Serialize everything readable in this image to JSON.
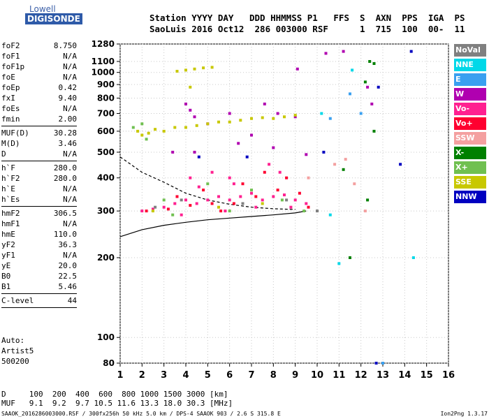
{
  "logo": {
    "top": "Lowell",
    "bottom": "DIGISONDE"
  },
  "header": {
    "line1": "Station YYYY DAY   DDD HHMMSS P1   FFS  S  AXN  PPS  IGA  PS",
    "line2": "SaoLuis 2016 Oct12  286 003000 RSF      1  715  100  00-  11"
  },
  "params": [
    [
      {
        "label": "foF2",
        "value": "8.750"
      },
      {
        "label": "foF1",
        "value": "N/A"
      },
      {
        "label": "foF1p",
        "value": "N/A"
      },
      {
        "label": "foE",
        "value": "N/A"
      },
      {
        "label": "foEp",
        "value": "0.42"
      },
      {
        "label": "fxI",
        "value": "9.40"
      },
      {
        "label": "foEs",
        "value": "N/A"
      },
      {
        "label": "fmin",
        "value": "2.00"
      }
    ],
    [
      {
        "label": "MUF(D)",
        "value": "30.28"
      },
      {
        "label": "M(D)",
        "value": "3.46"
      },
      {
        "label": "D",
        "value": "N/A"
      }
    ],
    [
      {
        "label": "h`F",
        "value": "280.0"
      },
      {
        "label": "h`F2",
        "value": "280.0"
      },
      {
        "label": "h`E",
        "value": "N/A"
      },
      {
        "label": "h`Es",
        "value": "N/A"
      }
    ],
    [
      {
        "label": "hmF2",
        "value": "306.5"
      },
      {
        "label": "hmF1",
        "value": "N/A"
      },
      {
        "label": "hmE",
        "value": "110.0"
      },
      {
        "label": "yF2",
        "value": "36.3"
      },
      {
        "label": "yF1",
        "value": "N/A"
      },
      {
        "label": "yE",
        "value": "20.0"
      },
      {
        "label": "B0",
        "value": "22.5"
      },
      {
        "label": "B1",
        "value": "5.46"
      }
    ],
    [
      {
        "label": "C-level",
        "value": "44"
      }
    ]
  ],
  "auto": {
    "line1": "Auto:",
    "line2": "Artist5",
    "line3": "500200"
  },
  "dmuf": {
    "d_line": "D     100  200  400  600  800 1000 1500 3000 [km]",
    "muf_line": "MUF   9.1  9.2  9.7 10.5 11.6 13.3 18.0 30.3 [MHz]"
  },
  "footer": {
    "left": "SAAOK_2016286003000.RSF / 300fx256h 50 kHz 5.0 km / DPS-4 SAAOK 903 / 2.6 S 315.8 E",
    "right": "Ion2Png 1.3.17"
  },
  "legend": [
    {
      "label": "NoVal",
      "color": "#808080"
    },
    {
      "label": "NNE",
      "color": "#00d8e8"
    },
    {
      "label": "E",
      "color": "#3aa0f0"
    },
    {
      "label": "W",
      "color": "#b000b0"
    },
    {
      "label": "Vo-",
      "color": "#ff2090"
    },
    {
      "label": "Vo+",
      "color": "#ff0030"
    },
    {
      "label": "SSW",
      "color": "#f4a0a0"
    },
    {
      "label": "X-",
      "color": "#008000"
    },
    {
      "label": "X+",
      "color": "#70c050"
    },
    {
      "label": "SSE",
      "color": "#c8c800"
    },
    {
      "label": "NNW",
      "color": "#0000c0"
    }
  ],
  "chart_data": {
    "type": "scatter",
    "xlabel": "",
    "ylabel": "",
    "xlim": [
      1,
      16
    ],
    "ylim": [
      80,
      1280
    ],
    "y_scale": "log",
    "x_ticks": [
      "1",
      "2",
      "3",
      "4",
      "5",
      "6",
      "7",
      "8",
      "9",
      "10",
      "11",
      "12",
      "13",
      "14",
      "15",
      "16"
    ],
    "y_ticks": [
      "80",
      "100",
      "200",
      "300",
      "400",
      "500",
      "600",
      "700",
      "800",
      "900",
      "1000",
      "1100",
      "1280"
    ],
    "grid": "dotted",
    "legend_position": "right",
    "series": [
      {
        "name": "Vo-",
        "points": [
          [
            2.0,
            300
          ],
          [
            2.5,
            305
          ],
          [
            3.0,
            310
          ],
          [
            3.5,
            320
          ],
          [
            4.0,
            330
          ],
          [
            4.5,
            320
          ],
          [
            5.0,
            330
          ],
          [
            5.5,
            340
          ],
          [
            6.0,
            330
          ],
          [
            6.5,
            340
          ],
          [
            7.0,
            350
          ],
          [
            7.5,
            330
          ],
          [
            8.0,
            340
          ],
          [
            8.5,
            345
          ],
          [
            9.0,
            330
          ],
          [
            9.5,
            320
          ],
          [
            4.2,
            400
          ],
          [
            5.2,
            420
          ],
          [
            6.2,
            380
          ],
          [
            7.8,
            450
          ],
          [
            8.3,
            420
          ],
          [
            3.8,
            290
          ],
          [
            5.8,
            300
          ],
          [
            7.2,
            310
          ],
          [
            8.8,
            310
          ],
          [
            6.0,
            400
          ],
          [
            4.6,
            370
          ]
        ]
      },
      {
        "name": "Vo+",
        "points": [
          [
            2.2,
            300
          ],
          [
            3.2,
            305
          ],
          [
            4.2,
            315
          ],
          [
            5.2,
            320
          ],
          [
            6.2,
            320
          ],
          [
            7.2,
            340
          ],
          [
            8.2,
            360
          ],
          [
            9.2,
            350
          ],
          [
            3.6,
            340
          ],
          [
            4.8,
            360
          ],
          [
            6.6,
            380
          ],
          [
            8.6,
            400
          ],
          [
            7.6,
            420
          ],
          [
            5.6,
            300
          ],
          [
            9.6,
            310
          ]
        ]
      },
      {
        "name": "W",
        "points": [
          [
            4.0,
            760
          ],
          [
            4.2,
            720
          ],
          [
            4.4,
            680
          ],
          [
            5.0,
            640
          ],
          [
            6.0,
            700
          ],
          [
            7.0,
            580
          ],
          [
            7.6,
            760
          ],
          [
            8.2,
            700
          ],
          [
            9.0,
            680
          ],
          [
            9.1,
            1030
          ],
          [
            10.4,
            1180
          ],
          [
            11.2,
            1200
          ],
          [
            12.3,
            880
          ],
          [
            12.5,
            760
          ],
          [
            4.4,
            500
          ],
          [
            6.4,
            540
          ],
          [
            8.0,
            520
          ],
          [
            3.4,
            500
          ],
          [
            9.5,
            490
          ]
        ]
      },
      {
        "name": "SSE",
        "points": [
          [
            1.8,
            600
          ],
          [
            2.0,
            580
          ],
          [
            2.3,
            590
          ],
          [
            2.6,
            610
          ],
          [
            3.0,
            600
          ],
          [
            3.5,
            620
          ],
          [
            4.0,
            620
          ],
          [
            4.5,
            630
          ],
          [
            5.0,
            640
          ],
          [
            5.5,
            650
          ],
          [
            6.0,
            650
          ],
          [
            6.5,
            660
          ],
          [
            7.0,
            670
          ],
          [
            7.5,
            675
          ],
          [
            8.0,
            670
          ],
          [
            8.5,
            680
          ],
          [
            9.0,
            690
          ],
          [
            3.6,
            1010
          ],
          [
            4.0,
            1020
          ],
          [
            4.4,
            1030
          ],
          [
            4.8,
            1040
          ],
          [
            5.2,
            1045
          ],
          [
            4.2,
            880
          ],
          [
            2.5,
            300
          ],
          [
            5.5,
            310
          ],
          [
            7.5,
            320
          ]
        ]
      },
      {
        "name": "X+",
        "points": [
          [
            1.6,
            620
          ],
          [
            2.0,
            640
          ],
          [
            2.2,
            560
          ],
          [
            3.0,
            330
          ],
          [
            5.0,
            380
          ],
          [
            7.0,
            360
          ],
          [
            6.0,
            300
          ],
          [
            8.4,
            330
          ],
          [
            3.4,
            290
          ],
          [
            9.4,
            300
          ]
        ]
      },
      {
        "name": "X-",
        "points": [
          [
            12.2,
            920
          ],
          [
            12.4,
            1100
          ],
          [
            12.6,
            600
          ],
          [
            11.5,
            200
          ],
          [
            12.6,
            1080
          ],
          [
            11.2,
            430
          ],
          [
            12.3,
            330
          ]
        ]
      },
      {
        "name": "NNE",
        "points": [
          [
            10.2,
            700
          ],
          [
            11.6,
            1020
          ],
          [
            11.0,
            190
          ],
          [
            10.6,
            290
          ],
          [
            14.4,
            200
          ]
        ]
      },
      {
        "name": "E",
        "points": [
          [
            11.5,
            830
          ],
          [
            10.6,
            670
          ],
          [
            12.0,
            700
          ],
          [
            13.0,
            80
          ]
        ]
      },
      {
        "name": "NNW",
        "points": [
          [
            14.3,
            1200
          ],
          [
            10.3,
            500
          ],
          [
            13.8,
            450
          ],
          [
            12.8,
            880
          ],
          [
            12.7,
            80
          ],
          [
            4.6,
            480
          ],
          [
            6.8,
            480
          ]
        ]
      },
      {
        "name": "SSW",
        "points": [
          [
            9.6,
            400
          ],
          [
            10.8,
            450
          ],
          [
            11.3,
            470
          ],
          [
            11.7,
            380
          ],
          [
            12.2,
            300
          ]
        ]
      },
      {
        "name": "NoVal",
        "points": [
          [
            2.6,
            310
          ],
          [
            3.8,
            330
          ],
          [
            6.6,
            320
          ],
          [
            8.6,
            330
          ],
          [
            10.0,
            300
          ]
        ]
      }
    ],
    "curves": [
      {
        "name": "trace-lower",
        "points": [
          [
            1,
            240
          ],
          [
            2,
            255
          ],
          [
            3,
            265
          ],
          [
            4,
            272
          ],
          [
            5,
            278
          ],
          [
            6,
            282
          ],
          [
            7,
            286
          ],
          [
            8,
            290
          ],
          [
            9,
            295
          ],
          [
            9.5,
            300
          ]
        ]
      },
      {
        "name": "trace-dashed",
        "points": [
          [
            1,
            480
          ],
          [
            2,
            420
          ],
          [
            3,
            385
          ],
          [
            4,
            350
          ],
          [
            5,
            330
          ],
          [
            6,
            318
          ],
          [
            7,
            310
          ],
          [
            8,
            306
          ],
          [
            9,
            304
          ]
        ]
      }
    ]
  }
}
